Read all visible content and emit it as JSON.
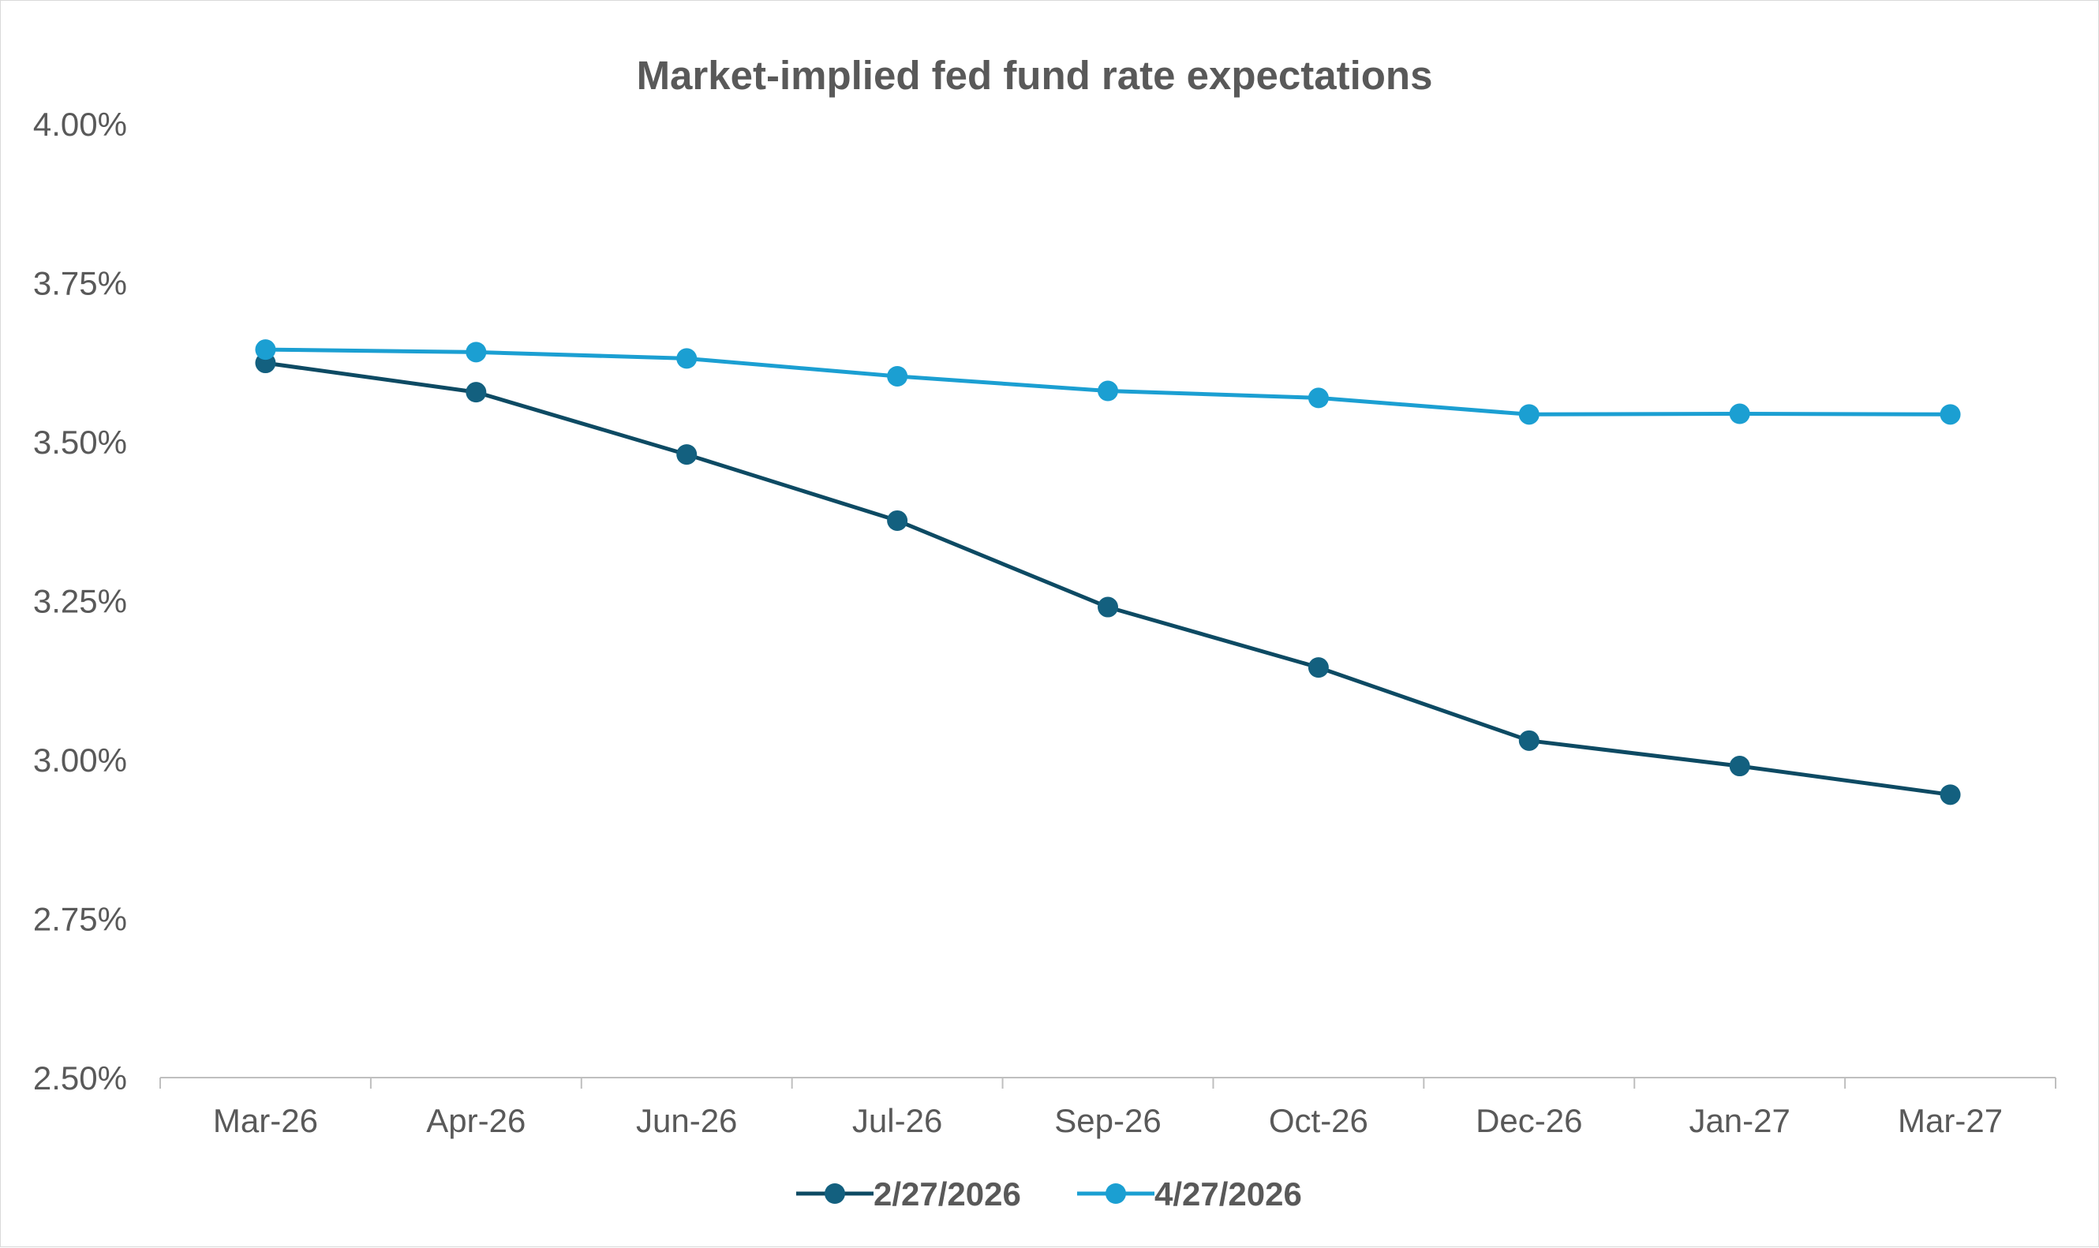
{
  "chart_data": {
    "type": "line",
    "title": "Market-implied fed fund rate expectations",
    "xlabel": "",
    "ylabel": "",
    "categories": [
      "Mar-26",
      "Apr-26",
      "Jun-26",
      "Jul-26",
      "Sep-26",
      "Oct-26",
      "Dec-26",
      "Jan-27",
      "Mar-27"
    ],
    "y_ticks": [
      "2.50%",
      "2.75%",
      "3.00%",
      "3.25%",
      "3.50%",
      "3.75%",
      "4.00%"
    ],
    "ylim": [
      2.5,
      4.0
    ],
    "y_format": "percent",
    "grid": false,
    "legend_position": "bottom",
    "series": [
      {
        "name": "2/27/2026",
        "color": "#0d4a63",
        "marker_color": "#13607f",
        "values": [
          3.624,
          3.578,
          3.48,
          3.376,
          3.24,
          3.145,
          3.03,
          2.99,
          2.945
        ]
      },
      {
        "name": "4/27/2026",
        "color": "#1b9fd2",
        "marker_color": "#1b9fd2",
        "values": [
          3.645,
          3.641,
          3.631,
          3.603,
          3.58,
          3.569,
          3.543,
          3.544,
          3.543
        ]
      }
    ]
  }
}
